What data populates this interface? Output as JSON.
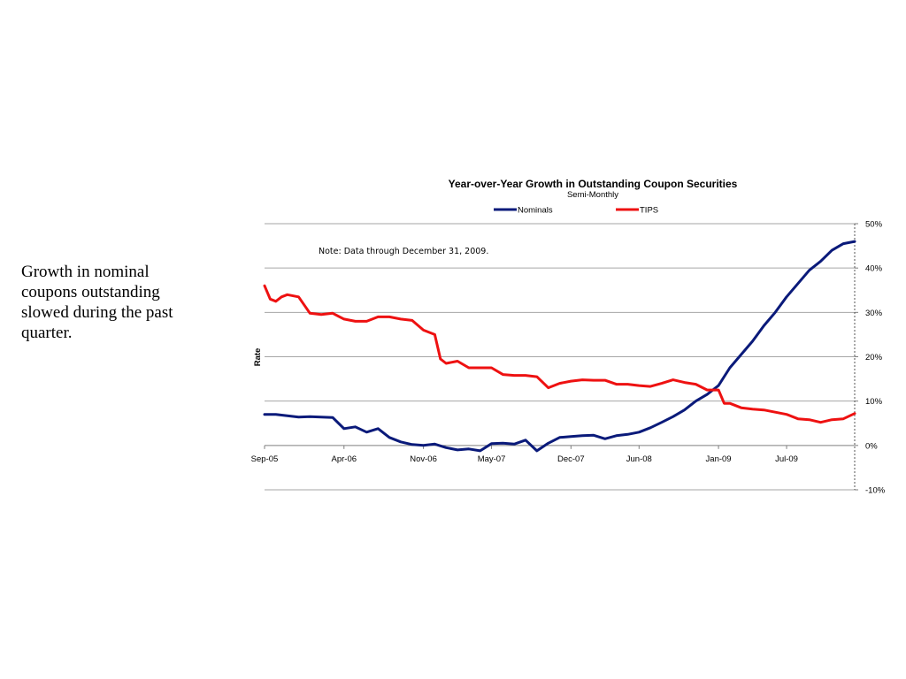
{
  "slide": {
    "text": "Growth in nominal coupons outstanding slowed during the past quarter."
  },
  "chart_data": {
    "type": "line",
    "title": "Year-over-Year Growth in Outstanding Coupon Securities",
    "subtitle": "Semi-Monthly",
    "ylabel": "Rate",
    "note": "Note: Data through December 31, 2009.",
    "x_start": "Sep-05",
    "x_end": "Dec-09",
    "x_ticks": [
      "Sep-05",
      "Apr-06",
      "Nov-06",
      "May-07",
      "Dec-07",
      "Jun-08",
      "Jan-09",
      "Jul-09"
    ],
    "x_tick_positions": [
      0,
      7,
      14,
      20,
      27,
      33,
      40,
      46
    ],
    "x_max": 52,
    "ylim": [
      -10,
      50
    ],
    "y_ticks": [
      -10,
      0,
      10,
      20,
      30,
      40,
      50
    ],
    "y_tick_labels": [
      "-10%",
      "0%",
      "10%",
      "20%",
      "30%",
      "40%",
      "50%"
    ],
    "grid": true,
    "legend_position": "top",
    "series": [
      {
        "name": "Nominals",
        "color": "#0a1a7a",
        "points": [
          [
            0,
            7.0
          ],
          [
            1,
            7.0
          ],
          [
            2,
            6.7
          ],
          [
            3,
            6.4
          ],
          [
            4,
            6.5
          ],
          [
            5,
            6.4
          ],
          [
            6,
            6.3
          ],
          [
            7,
            3.8
          ],
          [
            8,
            4.2
          ],
          [
            9,
            3.0
          ],
          [
            10,
            3.8
          ],
          [
            11,
            1.8
          ],
          [
            12,
            0.8
          ],
          [
            13,
            0.2
          ],
          [
            14,
            0.0
          ],
          [
            15,
            0.3
          ],
          [
            16,
            -0.5
          ],
          [
            17,
            -1.0
          ],
          [
            18,
            -0.8
          ],
          [
            19,
            -1.2
          ],
          [
            20,
            0.4
          ],
          [
            21,
            0.5
          ],
          [
            22,
            0.3
          ],
          [
            23,
            1.2
          ],
          [
            24,
            -1.2
          ],
          [
            25,
            0.5
          ],
          [
            26,
            1.8
          ],
          [
            27,
            2.0
          ],
          [
            28,
            2.2
          ],
          [
            29,
            2.3
          ],
          [
            30,
            1.5
          ],
          [
            31,
            2.2
          ],
          [
            32,
            2.5
          ],
          [
            33,
            3.0
          ],
          [
            34,
            4.0
          ],
          [
            35,
            5.2
          ],
          [
            36,
            6.5
          ],
          [
            37,
            8.0
          ],
          [
            38,
            10.0
          ],
          [
            39,
            11.5
          ],
          [
            40,
            13.5
          ],
          [
            41,
            17.5
          ],
          [
            42,
            20.5
          ],
          [
            43,
            23.5
          ],
          [
            44,
            27.0
          ],
          [
            45,
            30.0
          ],
          [
            46,
            33.5
          ],
          [
            47,
            36.5
          ],
          [
            48,
            39.5
          ],
          [
            49,
            41.5
          ],
          [
            50,
            44.0
          ],
          [
            51,
            45.5
          ],
          [
            52,
            46.0
          ]
        ]
      },
      {
        "name": "TIPS",
        "color": "#ee1111",
        "points": [
          [
            0,
            36.0
          ],
          [
            0.5,
            33.0
          ],
          [
            1,
            32.5
          ],
          [
            1.5,
            33.5
          ],
          [
            2,
            34.0
          ],
          [
            3,
            33.5
          ],
          [
            4,
            29.8
          ],
          [
            5,
            29.5
          ],
          [
            6,
            29.8
          ],
          [
            7,
            28.5
          ],
          [
            8,
            28.0
          ],
          [
            9,
            28.0
          ],
          [
            10,
            29.0
          ],
          [
            11,
            29.0
          ],
          [
            12,
            28.5
          ],
          [
            13,
            28.2
          ],
          [
            14,
            26.0
          ],
          [
            15,
            25.0
          ],
          [
            15.5,
            19.5
          ],
          [
            16,
            18.5
          ],
          [
            17,
            19.0
          ],
          [
            18,
            17.5
          ],
          [
            19,
            17.5
          ],
          [
            20,
            17.5
          ],
          [
            21,
            16.0
          ],
          [
            22,
            15.8
          ],
          [
            23,
            15.8
          ],
          [
            24,
            15.5
          ],
          [
            25,
            13.0
          ],
          [
            26,
            14.0
          ],
          [
            27,
            14.5
          ],
          [
            28,
            14.8
          ],
          [
            29,
            14.7
          ],
          [
            30,
            14.7
          ],
          [
            31,
            13.8
          ],
          [
            32,
            13.8
          ],
          [
            33,
            13.5
          ],
          [
            34,
            13.3
          ],
          [
            35,
            14.0
          ],
          [
            36,
            14.8
          ],
          [
            37,
            14.2
          ],
          [
            38,
            13.8
          ],
          [
            39,
            12.5
          ],
          [
            40,
            12.5
          ],
          [
            40.5,
            9.5
          ],
          [
            41,
            9.5
          ],
          [
            42,
            8.5
          ],
          [
            43,
            8.2
          ],
          [
            44,
            8.0
          ],
          [
            45,
            7.5
          ],
          [
            46,
            7.0
          ],
          [
            47,
            6.0
          ],
          [
            48,
            5.8
          ],
          [
            49,
            5.2
          ],
          [
            50,
            5.8
          ],
          [
            51,
            6.0
          ],
          [
            52,
            7.2
          ]
        ]
      }
    ]
  }
}
